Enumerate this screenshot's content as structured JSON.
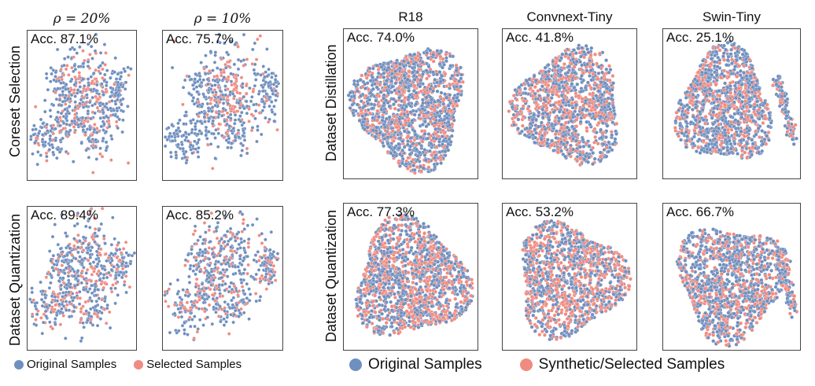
{
  "colors": {
    "original": "#6f8fbf",
    "selected": "#f08b80"
  },
  "left_group": {
    "col_titles": [
      "ρ = 20%",
      "ρ = 10%"
    ],
    "row_labels": [
      "Coreset Selection",
      "Dataset Quantization"
    ],
    "legend": {
      "original": "Original Samples",
      "selected": "Selected Samples"
    }
  },
  "right_group": {
    "col_titles": [
      "R18",
      "Convnext-Tiny",
      "Swin-Tiny"
    ],
    "row_labels": [
      "Dataset Distillation",
      "Dataset Quantization"
    ],
    "legend": {
      "original": "Original Samples",
      "selected": "Synthetic/Selected Samples"
    }
  },
  "chart_data": [
    {
      "type": "scatter",
      "row": "Coreset Selection",
      "column": "ρ = 20%",
      "annotation": "Acc. 87.1%",
      "accuracy": 87.1,
      "series": [
        "Original Samples",
        "Selected Samples"
      ]
    },
    {
      "type": "scatter",
      "row": "Coreset Selection",
      "column": "ρ = 10%",
      "annotation": "Acc. 75.7%",
      "accuracy": 75.7,
      "series": [
        "Original Samples",
        "Selected Samples"
      ]
    },
    {
      "type": "scatter",
      "row": "Dataset Quantization",
      "column": "ρ = 20%",
      "annotation": "Acc. 89.4%",
      "accuracy": 89.4,
      "series": [
        "Original Samples",
        "Selected Samples"
      ]
    },
    {
      "type": "scatter",
      "row": "Dataset Quantization",
      "column": "ρ = 10%",
      "annotation": "Acc. 85.2%",
      "accuracy": 85.2,
      "series": [
        "Original Samples",
        "Selected Samples"
      ]
    },
    {
      "type": "scatter",
      "row": "Dataset Distillation",
      "column": "R18",
      "annotation": "Acc. 74.0%",
      "accuracy": 74.0,
      "series": [
        "Original Samples",
        "Synthetic/Selected Samples"
      ]
    },
    {
      "type": "scatter",
      "row": "Dataset Distillation",
      "column": "Convnext-Tiny",
      "annotation": "Acc. 41.8%",
      "accuracy": 41.8,
      "series": [
        "Original Samples",
        "Synthetic/Selected Samples"
      ]
    },
    {
      "type": "scatter",
      "row": "Dataset Distillation",
      "column": "Swin-Tiny",
      "annotation": "Acc. 25.1%",
      "accuracy": 25.1,
      "series": [
        "Original Samples",
        "Synthetic/Selected Samples"
      ]
    },
    {
      "type": "scatter",
      "row": "Dataset Quantization",
      "column": "R18",
      "annotation": "Acc. 77.3%",
      "accuracy": 77.3,
      "series": [
        "Original Samples",
        "Synthetic/Selected Samples"
      ]
    },
    {
      "type": "scatter",
      "row": "Dataset Quantization",
      "column": "Convnext-Tiny",
      "annotation": "Acc. 53.2%",
      "accuracy": 53.2,
      "series": [
        "Original Samples",
        "Synthetic/Selected Samples"
      ]
    },
    {
      "type": "scatter",
      "row": "Dataset Quantization",
      "column": "Swin-Tiny",
      "annotation": "Acc. 66.7%",
      "accuracy": 66.7,
      "series": [
        "Original Samples",
        "Synthetic/Selected Samples"
      ]
    }
  ]
}
